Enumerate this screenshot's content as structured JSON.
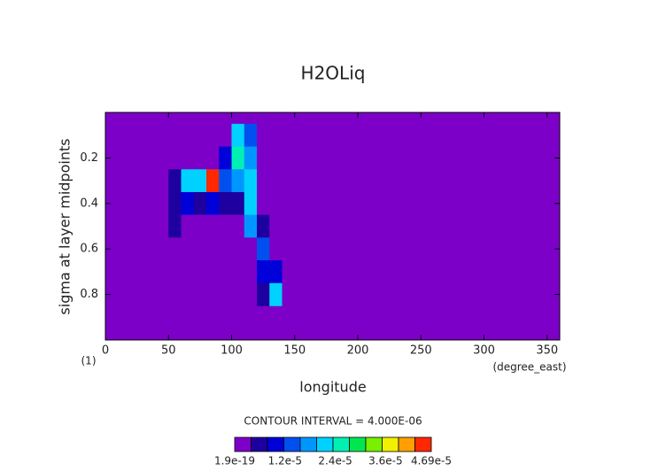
{
  "chart_data": {
    "type": "contour",
    "title": "H2OLiq",
    "x_label": "longitude",
    "x_unit": "(degree_east)",
    "y_label": "sigma at layer midpoints",
    "y_unit": "(1)",
    "contour_note": "CONTOUR INTERVAL = 4.000E-06",
    "xlim": [
      0,
      360
    ],
    "xticks": [
      0,
      50,
      100,
      150,
      200,
      250,
      300,
      350
    ],
    "ylim": [
      1,
      0
    ],
    "yticks": [
      0.2,
      0.4,
      0.6,
      0.8
    ],
    "x": [
      45,
      55,
      65,
      75,
      85,
      95,
      105,
      115,
      125,
      135,
      145
    ],
    "y": [
      0.1,
      0.2,
      0.3,
      0.4,
      0.5,
      0.6,
      0.7,
      0.8
    ],
    "z": [
      [
        0,
        0,
        0,
        0,
        0,
        0,
        2e-05,
        1.2e-05,
        0,
        0,
        0
      ],
      [
        0,
        0,
        0,
        0,
        0,
        8e-06,
        2.4e-05,
        1.6e-05,
        0,
        0,
        0
      ],
      [
        0,
        4e-06,
        2.2e-05,
        2e-05,
        4.4e-05,
        1.4e-05,
        1.8e-05,
        2.2e-05,
        0,
        0,
        0
      ],
      [
        0,
        6e-06,
        1e-05,
        6e-06,
        8e-06,
        6e-06,
        6e-06,
        2e-05,
        0,
        0,
        0
      ],
      [
        2e-06,
        4e-06,
        3e-06,
        2e-06,
        0,
        0,
        0,
        1.6e-05,
        4e-06,
        0,
        0
      ],
      [
        0,
        2e-06,
        0,
        3e-06,
        0,
        0,
        0,
        0,
        1.2e-05,
        0,
        0
      ],
      [
        0,
        0,
        0,
        3e-06,
        0,
        0,
        0,
        0,
        8e-06,
        1e-05,
        0
      ],
      [
        0,
        0,
        0,
        2e-06,
        0,
        0,
        0,
        0,
        4e-06,
        2.2e-05,
        0
      ]
    ],
    "levels": [
      1.9e-19,
      4e-06,
      8e-06,
      1.2e-05,
      1.6e-05,
      2e-05,
      2.4e-05,
      2.8e-05,
      3.2e-05,
      3.6e-05,
      4e-05,
      4.4e-05,
      4.69e-05
    ],
    "colors": [
      "#7d00c8",
      "#1e00a0",
      "#0000d8",
      "#0050f0",
      "#0096ff",
      "#00d2ff",
      "#00f0b4",
      "#00e650",
      "#78f000",
      "#f0f000",
      "#ffa000",
      "#ff2800"
    ],
    "colorbar_ticks": [
      {
        "value": 1.9e-19,
        "label": "1.9e-19"
      },
      {
        "value": 1.2e-05,
        "label": "1.2e-5"
      },
      {
        "value": 2.4e-05,
        "label": "2.4e-5"
      },
      {
        "value": 3.6e-05,
        "label": "3.6e-5"
      },
      {
        "value": 4.69e-05,
        "label": "4.69e-5"
      }
    ]
  }
}
